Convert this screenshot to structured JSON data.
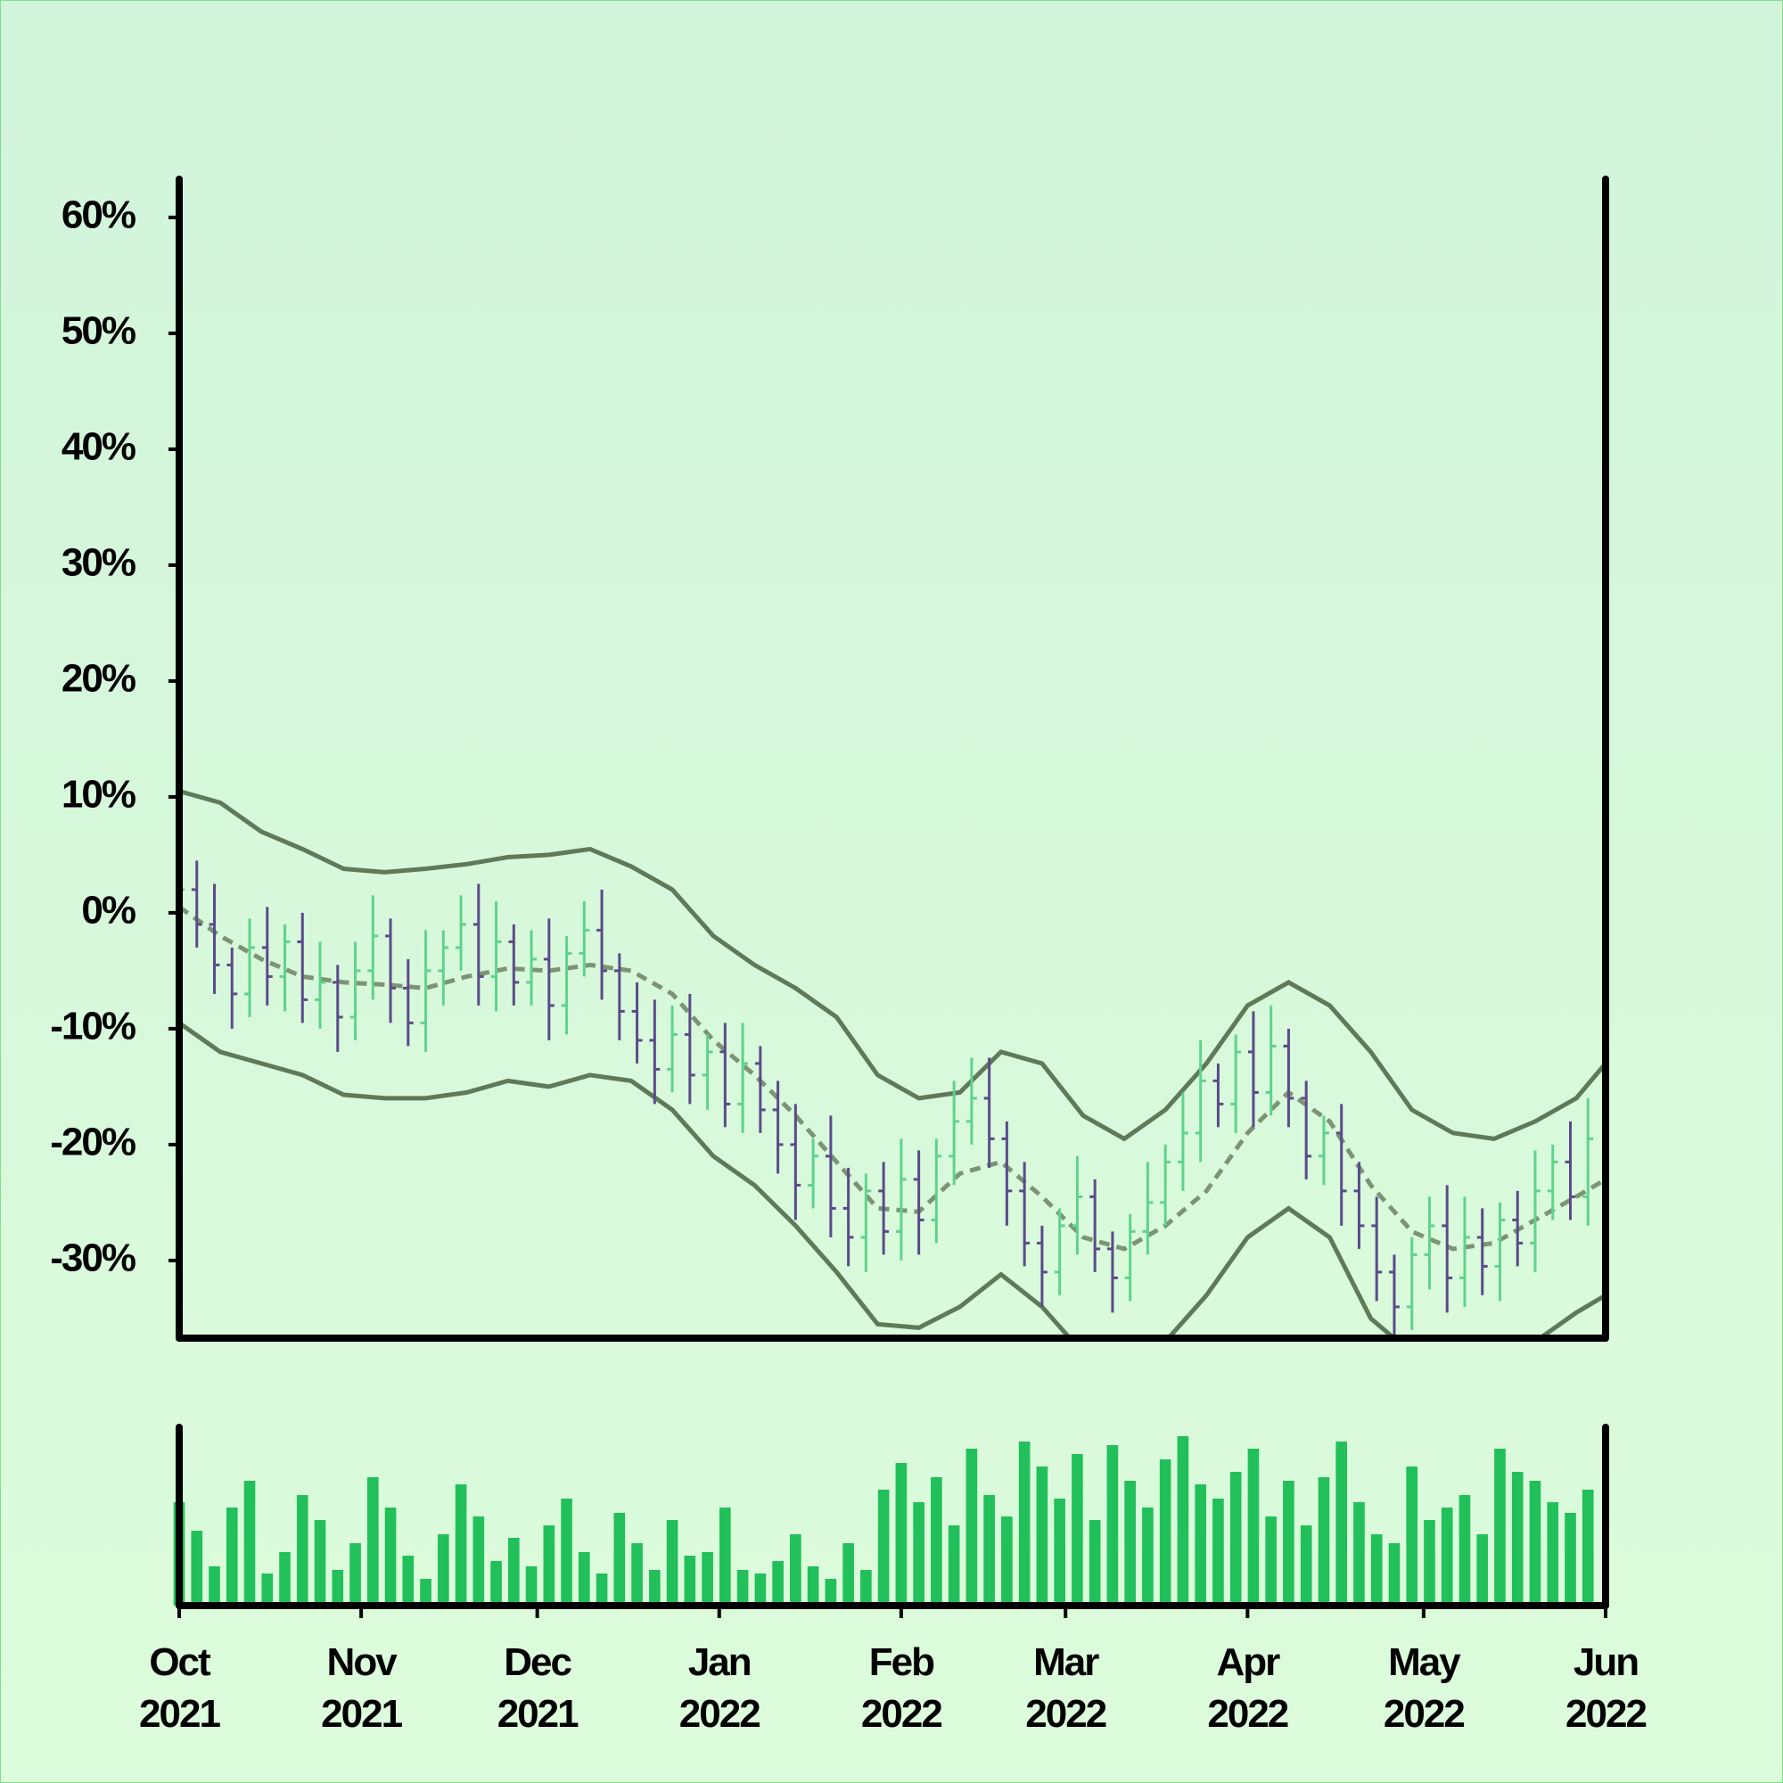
{
  "chart_data": {
    "type": "ohlc",
    "xlim": [
      "2021-10-01",
      "2022-06-01"
    ],
    "xticks": [
      {
        "value": "2021-10-01",
        "label": "Oct\n2021"
      },
      {
        "value": "2021-11-01",
        "label": "Nov\n2021"
      },
      {
        "value": "2021-12-01",
        "label": "Dec\n2021"
      },
      {
        "value": "2022-01-01",
        "label": "Jan\n2022"
      },
      {
        "value": "2022-02-01",
        "label": "Feb\n2022"
      },
      {
        "value": "2022-03-01",
        "label": "Mar\n2022"
      },
      {
        "value": "2022-04-01",
        "label": "Apr\n2022"
      },
      {
        "value": "2022-05-01",
        "label": "May\n2022"
      },
      {
        "value": "2022-06-01",
        "label": "Jun\n2022"
      }
    ],
    "ylim": [
      -36.7,
      63.3
    ],
    "yticks": [
      {
        "value": -30,
        "label": "-30%"
      },
      {
        "value": -20,
        "label": "-20%"
      },
      {
        "value": -10,
        "label": "-10%"
      },
      {
        "value": 0,
        "label": "0%"
      },
      {
        "value": 10,
        "label": "10%"
      },
      {
        "value": 20,
        "label": "20%"
      },
      {
        "value": 30,
        "label": "30%"
      },
      {
        "value": 40,
        "label": "40%"
      },
      {
        "value": 50,
        "label": "50%"
      },
      {
        "value": 60,
        "label": "60%"
      }
    ],
    "up_color": "#5fd38d",
    "down_color": "#5b4b8a",
    "volume_color": "#22c05a",
    "band_color": "#5f7a58",
    "mid_color": "#7d9474",
    "volume_ylim": [
      0,
      100
    ],
    "start": "2021-10-01",
    "step_days": 3,
    "ohlc": [
      [
        0.5,
        3.5,
        -2.5,
        2
      ],
      [
        2,
        4.5,
        -3,
        -1
      ],
      [
        -1,
        2.5,
        -7,
        -4.5
      ],
      [
        -4.5,
        -3,
        -10,
        -7
      ],
      [
        -7,
        -0.5,
        -9,
        -3
      ],
      [
        -3,
        0.5,
        -8,
        -5.5
      ],
      [
        -5.5,
        -1,
        -8.5,
        -2.5
      ],
      [
        -2.5,
        0,
        -9.5,
        -7.5
      ],
      [
        -7.5,
        -2.5,
        -10,
        -6
      ],
      [
        -6,
        -4.5,
        -12,
        -9
      ],
      [
        -9,
        -2.5,
        -11,
        -5
      ],
      [
        -5,
        1.5,
        -7.5,
        -2
      ],
      [
        -2,
        -0.5,
        -9.5,
        -6.5
      ],
      [
        -6.5,
        -4,
        -11.5,
        -9.5
      ],
      [
        -9.5,
        -1.5,
        -12,
        -5
      ],
      [
        -5,
        -1.5,
        -8,
        -3
      ],
      [
        -3,
        1.5,
        -5,
        -1
      ],
      [
        -1,
        2.5,
        -8,
        -5.5
      ],
      [
        -5.5,
        1,
        -8.5,
        -2.5
      ],
      [
        -2.5,
        -1,
        -8,
        -6
      ],
      [
        -6,
        -1.5,
        -8,
        -4
      ],
      [
        -4,
        -0.5,
        -11,
        -8
      ],
      [
        -8,
        -2,
        -10.5,
        -3.5
      ],
      [
        -3.5,
        1,
        -5.5,
        -1.5
      ],
      [
        -1.5,
        2,
        -7.5,
        -5
      ],
      [
        -5,
        -3.5,
        -11,
        -8.5
      ],
      [
        -8.5,
        -6,
        -13,
        -11
      ],
      [
        -11,
        -7.5,
        -16.5,
        -13.5
      ],
      [
        -13.5,
        -8,
        -15.5,
        -10.5
      ],
      [
        -10.5,
        -7,
        -16.5,
        -14
      ],
      [
        -14,
        -10.5,
        -17,
        -12
      ],
      [
        -12,
        -9.5,
        -18.5,
        -16.5
      ],
      [
        -16.5,
        -9.5,
        -19,
        -13
      ],
      [
        -13,
        -11.5,
        -19,
        -17
      ],
      [
        -17,
        -14.5,
        -22.5,
        -20
      ],
      [
        -20,
        -16.5,
        -26.5,
        -23.5
      ],
      [
        -23.5,
        -19.5,
        -25.5,
        -21
      ],
      [
        -21,
        -17.5,
        -28,
        -25.5
      ],
      [
        -25.5,
        -22,
        -30.5,
        -28
      ],
      [
        -28,
        -22.5,
        -31,
        -24
      ],
      [
        -24,
        -21.5,
        -29.5,
        -27.5
      ],
      [
        -27.5,
        -19.5,
        -30,
        -23
      ],
      [
        -23,
        -20.5,
        -29.5,
        -26.5
      ],
      [
        -26.5,
        -19.5,
        -28.5,
        -21
      ],
      [
        -21,
        -14.5,
        -23.5,
        -18
      ],
      [
        -18,
        -12.5,
        -20,
        -16
      ],
      [
        -16,
        -12.5,
        -22,
        -19.5
      ],
      [
        -19.5,
        -18,
        -27,
        -24
      ],
      [
        -24,
        -21.5,
        -30.5,
        -28.5
      ],
      [
        -28.5,
        -27,
        -34,
        -31
      ],
      [
        -31,
        -25.5,
        -33,
        -27
      ],
      [
        -27,
        -21,
        -29.5,
        -24.5
      ],
      [
        -24.5,
        -23,
        -31,
        -29
      ],
      [
        -29,
        -27.5,
        -34.5,
        -31.5
      ],
      [
        -31.5,
        -26,
        -33.5,
        -27.5
      ],
      [
        -27.5,
        -21.5,
        -29.5,
        -25
      ],
      [
        -25,
        -20,
        -27,
        -21.5
      ],
      [
        -21.5,
        -15.5,
        -24,
        -19
      ],
      [
        -19,
        -11,
        -21.5,
        -14.5
      ],
      [
        -14.5,
        -13,
        -18.5,
        -16.5
      ],
      [
        -16.5,
        -10.5,
        -19,
        -12
      ],
      [
        -12,
        -8.5,
        -18.5,
        -15.5
      ],
      [
        -15.5,
        -8,
        -17.5,
        -11.5
      ],
      [
        -11.5,
        -10,
        -18.5,
        -16
      ],
      [
        -16,
        -14.5,
        -23,
        -21
      ],
      [
        -21,
        -17.5,
        -23.5,
        -19
      ],
      [
        -19,
        -16.5,
        -27,
        -24
      ],
      [
        -24,
        -21.5,
        -29,
        -27
      ],
      [
        -27,
        -24.5,
        -33.5,
        -31
      ],
      [
        -31,
        -29.5,
        -37,
        -34
      ],
      [
        -34,
        -28,
        -36,
        -29.5
      ],
      [
        -29.5,
        -24.5,
        -32.5,
        -27
      ],
      [
        -27,
        -23.5,
        -34.5,
        -31.5
      ],
      [
        -31.5,
        -24.5,
        -34,
        -28
      ],
      [
        -28,
        -25.5,
        -33,
        -30.5
      ],
      [
        -30.5,
        -25,
        -33.5,
        -26.5
      ],
      [
        -26.5,
        -24,
        -30.5,
        -28.5
      ],
      [
        -28.5,
        -20.5,
        -31,
        -24
      ],
      [
        -24,
        -20,
        -26.5,
        -21.5
      ],
      [
        -21.5,
        -18,
        -26.5,
        -24.5
      ],
      [
        -24.5,
        -16,
        -27,
        -19.5
      ]
    ],
    "volume": [
      58,
      42,
      22,
      55,
      70,
      18,
      30,
      62,
      48,
      20,
      35,
      72,
      55,
      28,
      15,
      40,
      68,
      50,
      25,
      38,
      22,
      45,
      60,
      30,
      18,
      52,
      35,
      20,
      48,
      28,
      30,
      55,
      20,
      18,
      25,
      40,
      22,
      15,
      35,
      20,
      65,
      80,
      58,
      72,
      45,
      88,
      62,
      50,
      92,
      78,
      60,
      85,
      48,
      90,
      70,
      55,
      82,
      95,
      68,
      60,
      75,
      88,
      50,
      70,
      45,
      72,
      92,
      58,
      40,
      35,
      78,
      48,
      55,
      62,
      40,
      88,
      75,
      70,
      58,
      52,
      65
    ],
    "band_x": [
      "2021-10-01",
      "2021-10-08",
      "2021-10-15",
      "2021-10-22",
      "2021-10-29",
      "2021-11-05",
      "2021-11-12",
      "2021-11-19",
      "2021-11-26",
      "2021-12-03",
      "2021-12-10",
      "2021-12-17",
      "2021-12-24",
      "2021-12-31",
      "2022-01-07",
      "2022-01-14",
      "2022-01-21",
      "2022-01-28",
      "2022-02-04",
      "2022-02-11",
      "2022-02-18",
      "2022-02-25",
      "2022-03-04",
      "2022-03-11",
      "2022-03-18",
      "2022-03-25",
      "2022-04-01",
      "2022-04-08",
      "2022-04-15",
      "2022-04-22",
      "2022-04-29",
      "2022-05-06",
      "2022-05-13",
      "2022-05-20",
      "2022-05-27",
      "2022-06-01"
    ],
    "band_upper": [
      10.5,
      9.5,
      7,
      5.5,
      3.8,
      3.5,
      3.8,
      4.2,
      4.8,
      5,
      5.5,
      4,
      2,
      -2,
      -4.5,
      -6.5,
      -9,
      -14,
      -16,
      -15.5,
      -12,
      -13,
      -17.5,
      -19.5,
      -17,
      -13,
      -8,
      -6,
      -8,
      -12,
      -17,
      -19,
      -19.5,
      -18,
      -16,
      -13
    ],
    "band_middle": [
      0.5,
      -2,
      -4,
      -5.5,
      -6,
      -6.2,
      -6.5,
      -5.5,
      -4.8,
      -5,
      -4.5,
      -5,
      -7,
      -11,
      -14,
      -17.5,
      -21.5,
      -25.5,
      -25.8,
      -22.5,
      -21.5,
      -24.5,
      -28,
      -29,
      -27,
      -24,
      -19,
      -15.5,
      -18,
      -23.5,
      -27.5,
      -29,
      -28.5,
      -26.5,
      -24.5,
      -23
    ],
    "band_lower": [
      -9.5,
      -12,
      -13,
      -14,
      -15.7,
      -16,
      -16,
      -15.5,
      -14.5,
      -15,
      -14,
      -14.5,
      -17,
      -21,
      -23.5,
      -27,
      -31,
      -35.5,
      -35.8,
      -34,
      -31.2,
      -34,
      -38,
      -38.5,
      -37,
      -33,
      -28,
      -25.5,
      -28,
      -35,
      -38,
      -39,
      -38,
      -37,
      -34.5,
      -33
    ]
  }
}
